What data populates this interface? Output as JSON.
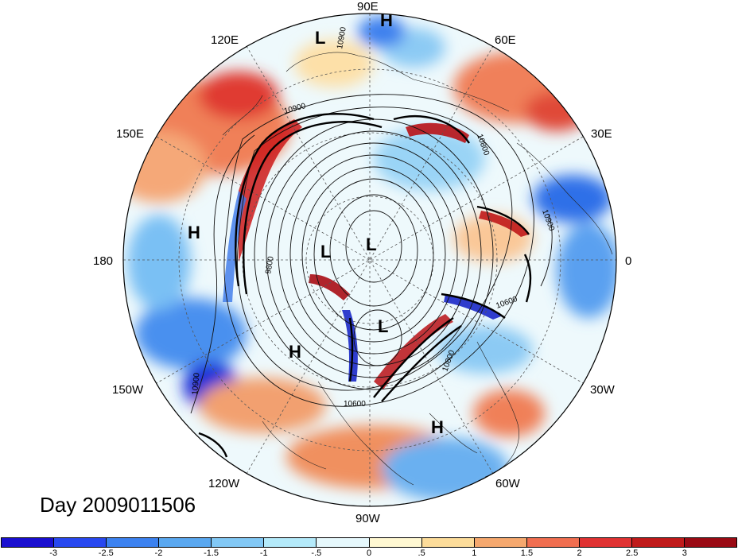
{
  "title": "Day 2009011506",
  "longitude_labels": {
    "lon_90E": "90E",
    "lon_60E": "60E",
    "lon_30E": "30E",
    "lon_0": "0",
    "lon_30W": "30W",
    "lon_60W": "60W",
    "lon_90W": "90W",
    "lon_120W": "120W",
    "lon_150W": "150W",
    "lon_180": "180",
    "lon_150E": "150E",
    "lon_120E": "120E"
  },
  "pressure_centers": [
    "H",
    "L",
    "H",
    "L",
    "L",
    "L",
    "H",
    "H"
  ],
  "contour_labels": [
    "10900",
    "10800",
    "10900",
    "9800",
    "10600",
    "10900",
    "10800",
    "10600",
    "10900"
  ],
  "colorbar": {
    "ticks": [
      "-3",
      "-2.5",
      "-2",
      "-1.5",
      "-1",
      "-.5",
      "0",
      ".5",
      "1",
      "1.5",
      "2",
      "2.5",
      "3"
    ],
    "colors": [
      "#1a0fd0",
      "#2848f0",
      "#3c82f0",
      "#5aa8f0",
      "#82c8f5",
      "#b4eafa",
      "#e6f8fc",
      "#fff8d2",
      "#fcdc9a",
      "#f5a86e",
      "#f06e50",
      "#e03232",
      "#c01a1a",
      "#9a0a14"
    ]
  }
}
